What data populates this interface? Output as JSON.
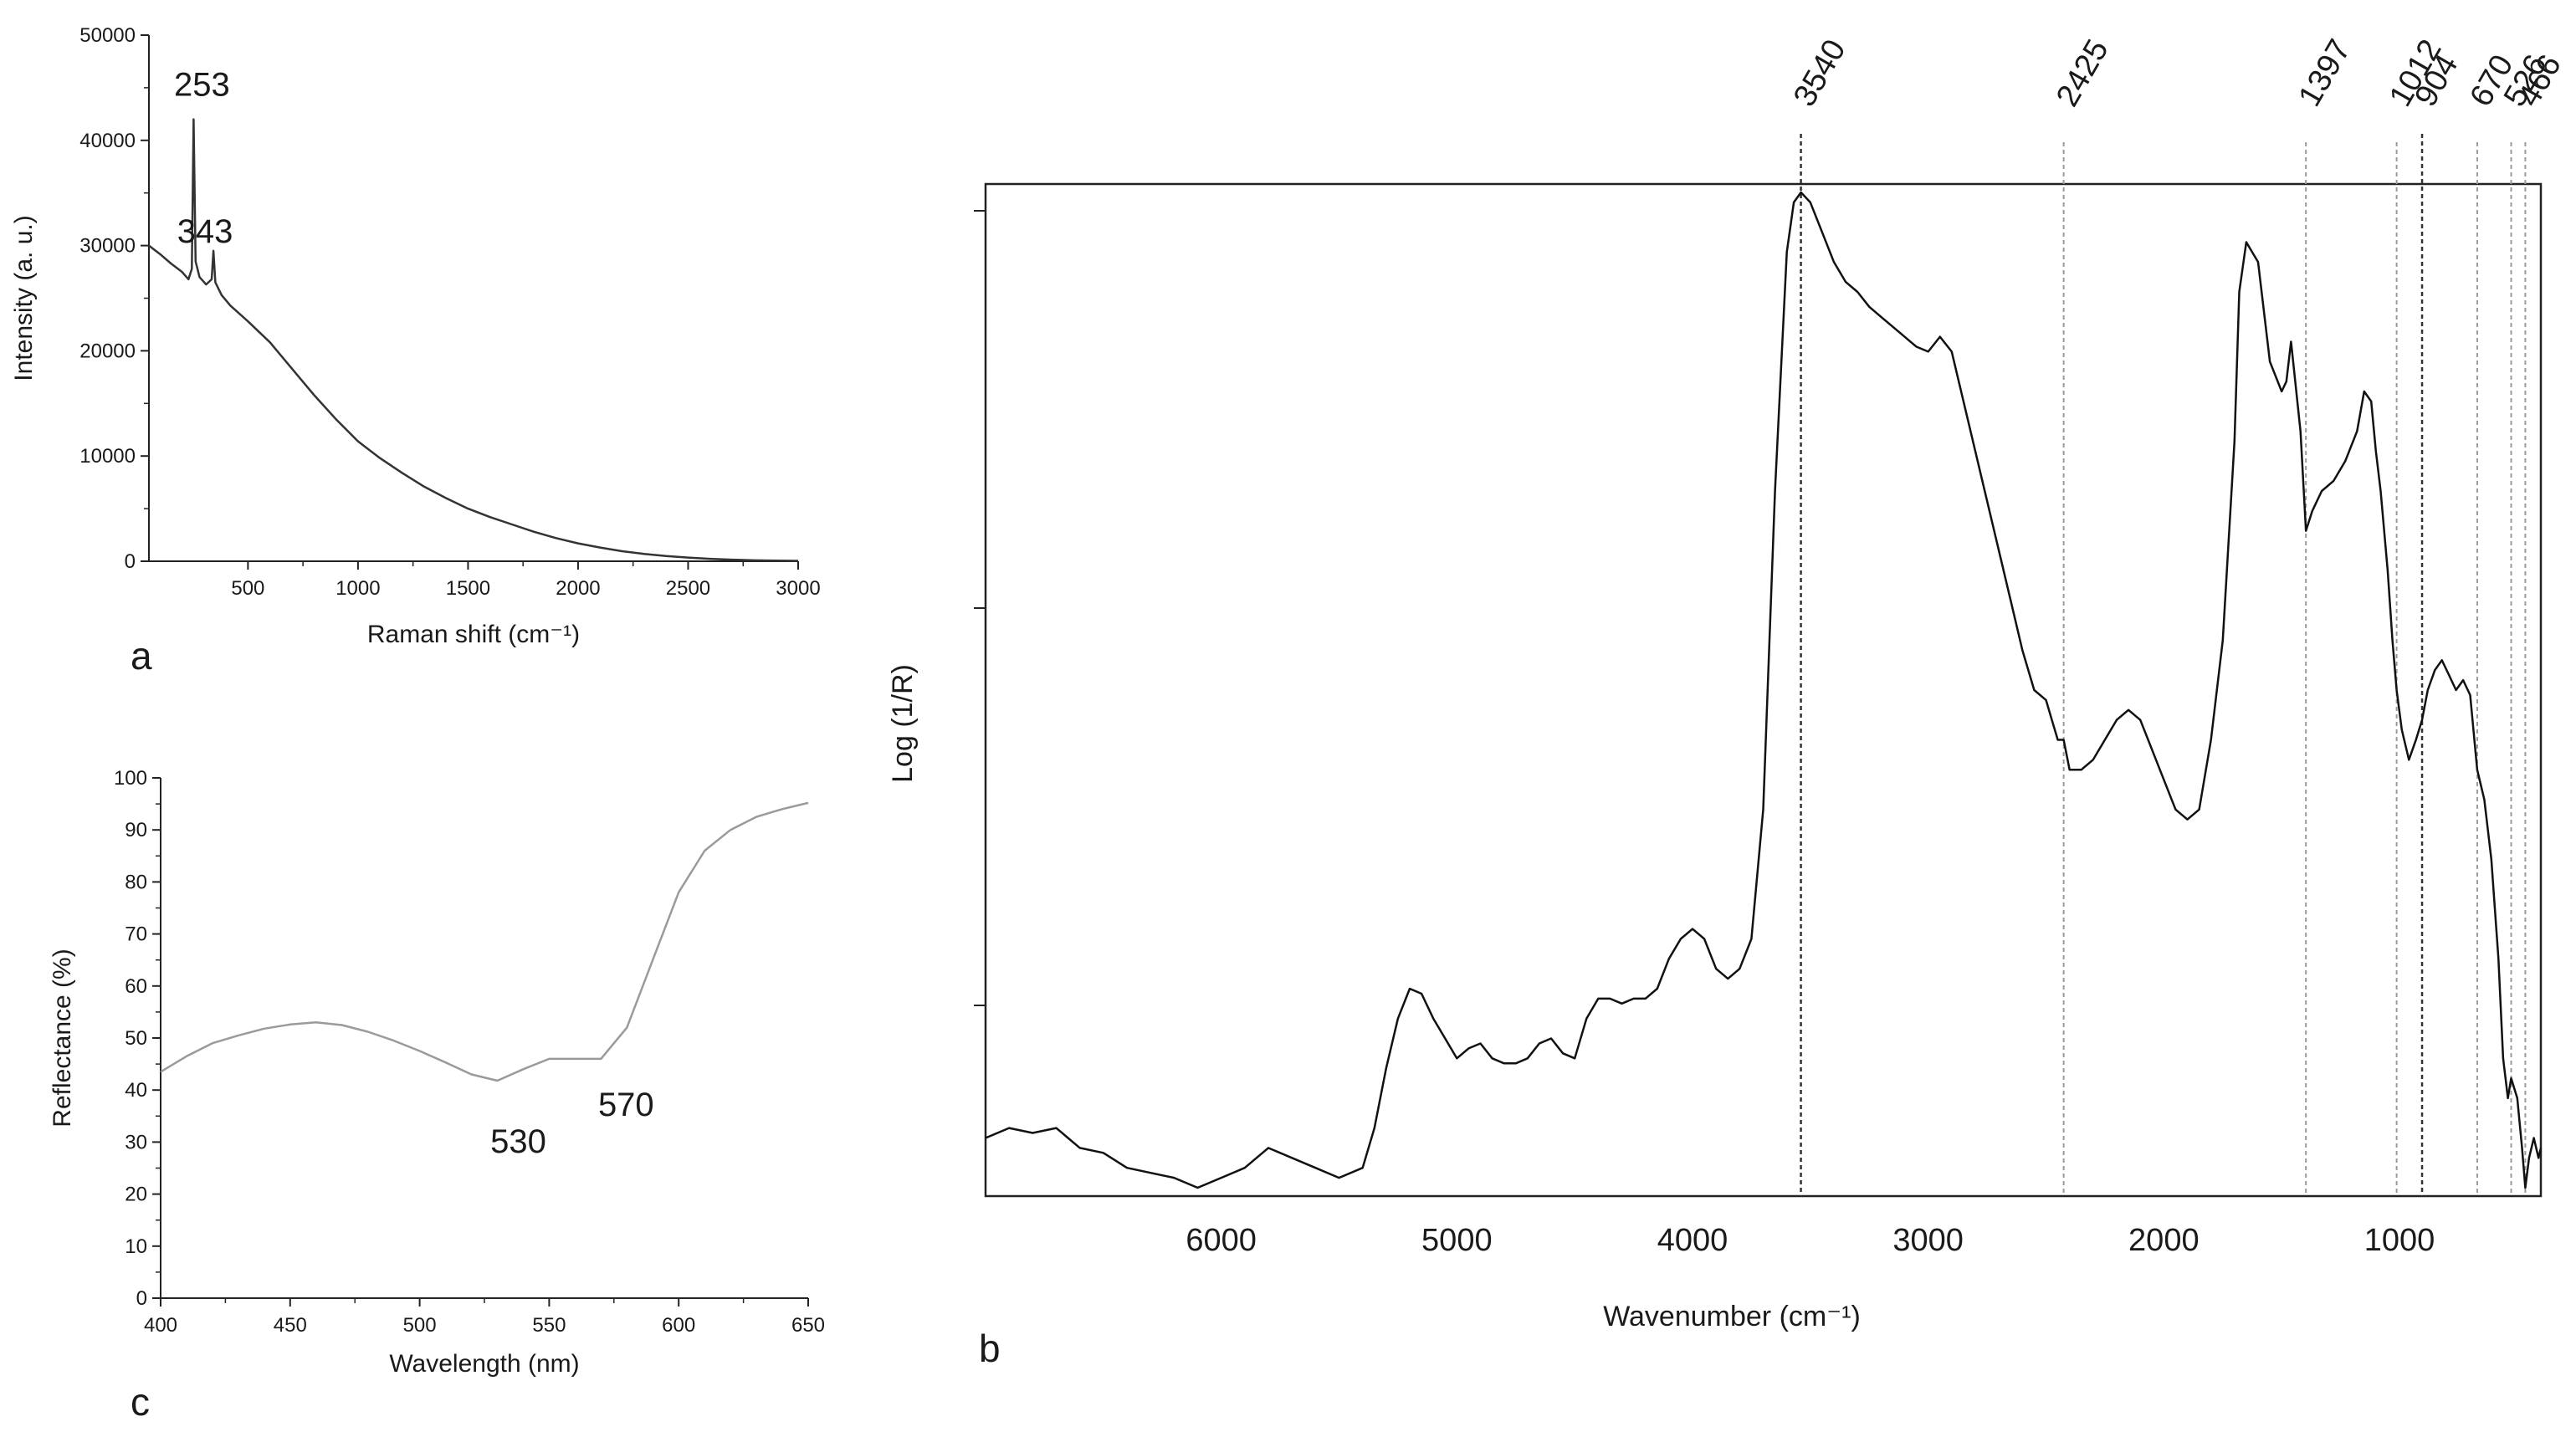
{
  "panels": {
    "a": {
      "letter": "a"
    },
    "b": {
      "letter": "b"
    },
    "c": {
      "letter": "c"
    }
  },
  "chart_data": [
    {
      "id": "a",
      "type": "line",
      "title": "",
      "xlabel": "Raman shift (cm⁻¹)",
      "ylabel": "Intensity (a. u.)",
      "xlim": [
        50,
        3000
      ],
      "ylim": [
        0,
        50000
      ],
      "xticks": [
        500,
        1000,
        1500,
        2000,
        2500,
        3000
      ],
      "yticks": [
        0,
        10000,
        20000,
        30000,
        40000,
        50000
      ],
      "grid": false,
      "color": "#333333",
      "annotations": [
        {
          "text": "253",
          "x": 253,
          "y": 42000
        },
        {
          "text": "343",
          "x": 343,
          "y": 29500
        }
      ],
      "series": [
        {
          "x": [
            50,
            100,
            150,
            200,
            230,
            245,
            253,
            262,
            280,
            310,
            335,
            343,
            352,
            380,
            420,
            500,
            600,
            700,
            800,
            900,
            1000,
            1100,
            1200,
            1300,
            1400,
            1500,
            1600,
            1700,
            1800,
            1900,
            2000,
            2100,
            2200,
            2300,
            2400,
            2500,
            2600,
            2700,
            2800,
            2900,
            3000
          ],
          "y": [
            30000,
            29200,
            28300,
            27500,
            26800,
            27800,
            42000,
            28500,
            27000,
            26300,
            26800,
            29500,
            26500,
            25300,
            24300,
            22800,
            20800,
            18300,
            15800,
            13500,
            11400,
            9800,
            8400,
            7100,
            6000,
            5000,
            4200,
            3500,
            2800,
            2200,
            1700,
            1300,
            950,
            700,
            500,
            350,
            230,
            150,
            90,
            60,
            40
          ]
        }
      ]
    },
    {
      "id": "c",
      "type": "line",
      "title": "",
      "xlabel": "Wavelength (nm)",
      "ylabel": "Reflectance (%)",
      "xlim": [
        400,
        650
      ],
      "ylim": [
        0,
        100
      ],
      "xticks": [
        400,
        450,
        500,
        550,
        600,
        650
      ],
      "yticks": [
        0,
        10,
        20,
        30,
        40,
        50,
        60,
        70,
        80,
        90,
        100
      ],
      "grid": false,
      "color": "#9a9a9a",
      "annotations": [
        {
          "text": "530",
          "x": 530,
          "y": 42
        },
        {
          "text": "570",
          "x": 570,
          "y": 46
        }
      ],
      "series": [
        {
          "x": [
            400,
            410,
            420,
            430,
            440,
            450,
            460,
            470,
            480,
            490,
            500,
            510,
            520,
            530,
            540,
            550,
            560,
            570,
            580,
            590,
            600,
            610,
            620,
            630,
            640,
            650
          ],
          "y": [
            43.5,
            46.5,
            49,
            50.5,
            51.8,
            52.6,
            53,
            52.5,
            51.2,
            49.5,
            47.5,
            45.3,
            43,
            41.8,
            44,
            46,
            46,
            46,
            52,
            65,
            78,
            86,
            90,
            92.5,
            94,
            95.2
          ]
        }
      ]
    },
    {
      "id": "b",
      "type": "line",
      "title": "",
      "xlabel": "Wavenumber (cm⁻¹)",
      "ylabel": "Log (1/R)",
      "xlim": [
        7000,
        400
      ],
      "ylim": [
        0,
        1
      ],
      "xticks": [
        6000,
        5000,
        4000,
        3000,
        2000,
        1000
      ],
      "grid": false,
      "color": "#111111",
      "reference_lines": [
        {
          "label": "3540",
          "x": 3540
        },
        {
          "label": "2425",
          "x": 2425
        },
        {
          "label": "1397",
          "x": 1397
        },
        {
          "label": "1012",
          "x": 1012
        },
        {
          "label": "904",
          "x": 904
        },
        {
          "label": "670",
          "x": 670
        },
        {
          "label": "526",
          "x": 526
        },
        {
          "label": "466",
          "x": 466
        }
      ],
      "series": [
        {
          "x": [
            7000,
            6900,
            6800,
            6700,
            6600,
            6500,
            6400,
            6300,
            6200,
            6100,
            6000,
            5900,
            5800,
            5700,
            5600,
            5500,
            5400,
            5350,
            5300,
            5250,
            5200,
            5150,
            5100,
            5050,
            5000,
            4950,
            4900,
            4850,
            4800,
            4750,
            4700,
            4650,
            4600,
            4550,
            4500,
            4450,
            4400,
            4350,
            4300,
            4250,
            4200,
            4150,
            4100,
            4050,
            4000,
            3950,
            3900,
            3850,
            3800,
            3750,
            3700,
            3650,
            3600,
            3570,
            3540,
            3500,
            3450,
            3400,
            3350,
            3300,
            3250,
            3200,
            3150,
            3100,
            3050,
            3000,
            2950,
            2900,
            2850,
            2800,
            2750,
            2700,
            2650,
            2600,
            2550,
            2500,
            2475,
            2450,
            2425,
            2400,
            2350,
            2300,
            2250,
            2200,
            2150,
            2100,
            2050,
            2000,
            1950,
            1900,
            1850,
            1800,
            1750,
            1700,
            1680,
            1650,
            1600,
            1550,
            1500,
            1480,
            1460,
            1420,
            1397,
            1370,
            1330,
            1280,
            1230,
            1180,
            1150,
            1120,
            1100,
            1080,
            1050,
            1030,
            1012,
            990,
            960,
            930,
            904,
            880,
            850,
            820,
            790,
            760,
            730,
            700,
            670,
            640,
            610,
            580,
            560,
            540,
            526,
            500,
            480,
            466,
            450,
            430,
            410,
            400
          ],
          "y": [
            0.05,
            0.06,
            0.055,
            0.06,
            0.04,
            0.035,
            0.02,
            0.015,
            0.01,
            0.0,
            0.01,
            0.02,
            0.04,
            0.03,
            0.02,
            0.01,
            0.02,
            0.06,
            0.12,
            0.17,
            0.2,
            0.195,
            0.17,
            0.15,
            0.13,
            0.14,
            0.145,
            0.13,
            0.125,
            0.125,
            0.13,
            0.145,
            0.15,
            0.135,
            0.13,
            0.17,
            0.19,
            0.19,
            0.185,
            0.19,
            0.19,
            0.2,
            0.23,
            0.25,
            0.26,
            0.25,
            0.22,
            0.21,
            0.22,
            0.25,
            0.38,
            0.7,
            0.94,
            0.99,
            1.0,
            0.99,
            0.96,
            0.93,
            0.91,
            0.9,
            0.885,
            0.875,
            0.865,
            0.855,
            0.845,
            0.84,
            0.855,
            0.84,
            0.79,
            0.74,
            0.69,
            0.64,
            0.59,
            0.54,
            0.5,
            0.49,
            0.47,
            0.45,
            0.45,
            0.42,
            0.42,
            0.43,
            0.45,
            0.47,
            0.48,
            0.47,
            0.44,
            0.41,
            0.38,
            0.37,
            0.38,
            0.45,
            0.55,
            0.75,
            0.9,
            0.95,
            0.93,
            0.83,
            0.8,
            0.81,
            0.85,
            0.76,
            0.66,
            0.68,
            0.7,
            0.71,
            0.73,
            0.76,
            0.8,
            0.79,
            0.74,
            0.7,
            0.62,
            0.55,
            0.5,
            0.46,
            0.43,
            0.45,
            0.47,
            0.5,
            0.52,
            0.53,
            0.515,
            0.5,
            0.51,
            0.495,
            0.42,
            0.39,
            0.33,
            0.23,
            0.13,
            0.09,
            0.11,
            0.09,
            0.04,
            0.0,
            0.03,
            0.05,
            0.03,
            0.04
          ]
        }
      ]
    }
  ]
}
